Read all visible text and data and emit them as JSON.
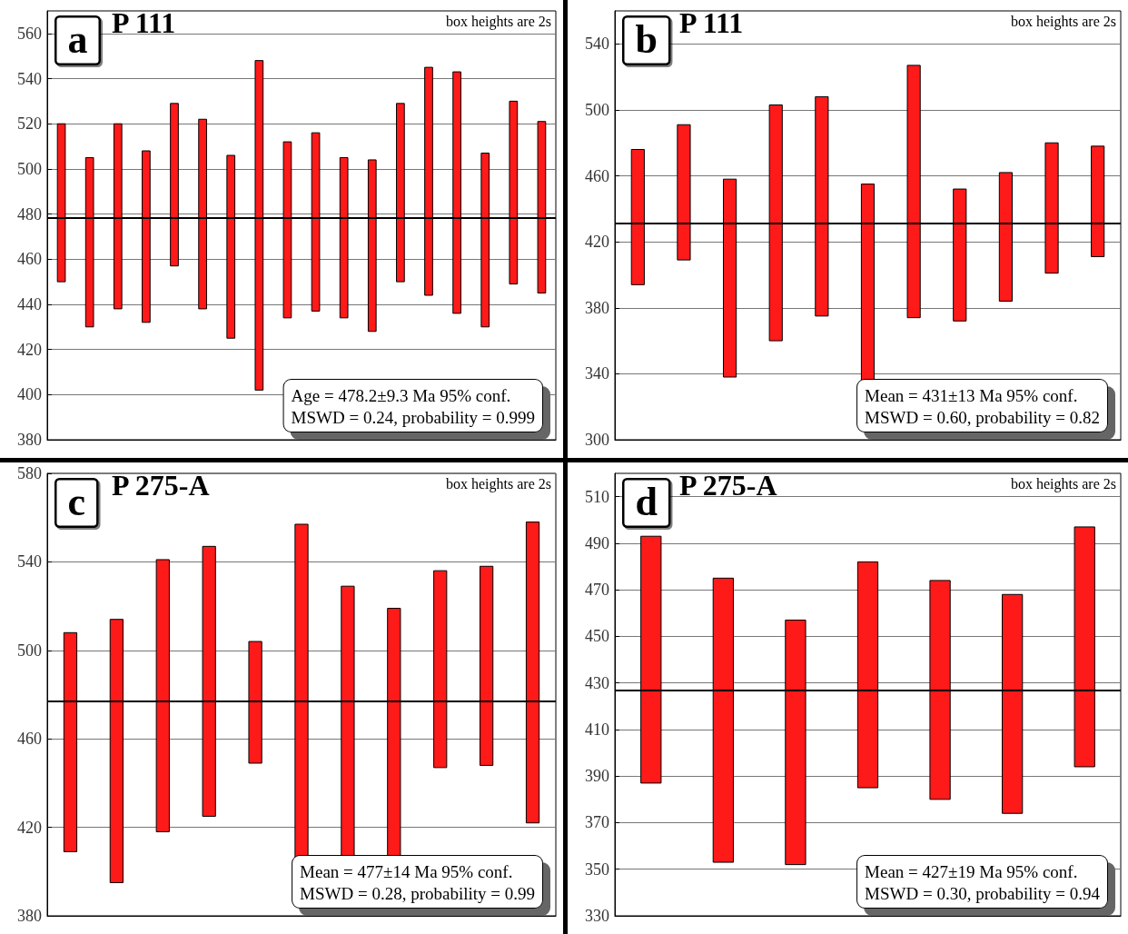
{
  "chart_data": [
    {
      "type": "bar",
      "title": "P 111",
      "categories": [
        null,
        null,
        null,
        null,
        null,
        null,
        null,
        null,
        null,
        null,
        null,
        null,
        null,
        null,
        null,
        null,
        null,
        null
      ],
      "base": [
        450,
        430,
        438,
        432,
        457,
        438,
        425,
        402,
        434,
        437,
        434,
        428,
        450,
        444,
        436,
        430,
        449,
        445
      ],
      "values": [
        70,
        75,
        82,
        76,
        72,
        84,
        81,
        146,
        78,
        79,
        71,
        76,
        79,
        101,
        107,
        77,
        81,
        76
      ],
      "color": "#ff1a1a",
      "ylim": [
        380,
        570
      ],
      "yticks": [
        380,
        400,
        420,
        440,
        460,
        480,
        500,
        520,
        540,
        560
      ],
      "grid": "y",
      "tick_labels": "y",
      "ref_lines": [
        {
          "axis": "y",
          "value": 478.2,
          "color": "#000000"
        }
      ],
      "annotations": [
        "a",
        "box heights are 2s",
        "Age = 478.2±9.3 Ma 95% conf.",
        "MSWD = 0.24, probability = 0.999"
      ]
    },
    {
      "type": "bar",
      "title": "P 111",
      "categories": [
        null,
        null,
        null,
        null,
        null,
        null,
        null,
        null,
        null,
        null,
        null
      ],
      "base": [
        394,
        409,
        338,
        360,
        375,
        330,
        374,
        372,
        384,
        401,
        411
      ],
      "values": [
        82,
        82,
        120,
        143,
        133,
        125,
        153,
        80,
        78,
        79,
        67
      ],
      "color": "#ff1a1a",
      "ylim": [
        300,
        560
      ],
      "yticks": [
        300,
        340,
        380,
        420,
        460,
        500,
        540
      ],
      "grid": "y",
      "tick_labels": "y",
      "ref_lines": [
        {
          "axis": "y",
          "value": 431,
          "color": "#000000"
        }
      ],
      "annotations": [
        "b",
        "box heights are 2s",
        "Mean = 431±13 Ma 95% conf.",
        "MSWD = 0.60, probability = 0.82"
      ]
    },
    {
      "type": "bar",
      "title": "P 275-A",
      "categories": [
        null,
        null,
        null,
        null,
        null,
        null,
        null,
        null,
        null,
        null,
        null
      ],
      "base": [
        409,
        395,
        418,
        425,
        449,
        404,
        407,
        404,
        447,
        448,
        422
      ],
      "values": [
        99,
        119,
        123,
        122,
        55,
        153,
        122,
        115,
        89,
        90,
        136
      ],
      "color": "#ff1a1a",
      "ylim": [
        380,
        580
      ],
      "yticks": [
        380,
        420,
        460,
        500,
        540,
        580
      ],
      "grid": "y",
      "tick_labels": "y",
      "ref_lines": [
        {
          "axis": "y",
          "value": 477,
          "color": "#000000"
        }
      ],
      "annotations": [
        "c",
        "box heights are 2s",
        "Mean = 477±14 Ma 95% conf.",
        "MSWD = 0.28, probability = 0.99"
      ]
    },
    {
      "type": "bar",
      "title": "P 275-A",
      "categories": [
        null,
        null,
        null,
        null,
        null,
        null,
        null
      ],
      "base": [
        387,
        353,
        352,
        385,
        380,
        374,
        394
      ],
      "values": [
        106,
        122,
        105,
        97,
        94,
        94,
        103
      ],
      "color": "#ff1a1a",
      "ylim": [
        330,
        520
      ],
      "yticks": [
        330,
        350,
        370,
        390,
        410,
        430,
        450,
        470,
        490,
        510
      ],
      "grid": "y",
      "tick_labels": "y",
      "ref_lines": [
        {
          "axis": "y",
          "value": 427,
          "color": "#000000"
        }
      ],
      "annotations": [
        "d",
        "box heights are 2s",
        "Mean = 427±19 Ma 95% conf.",
        "MSWD = 0.30, probability = 0.94"
      ]
    }
  ]
}
